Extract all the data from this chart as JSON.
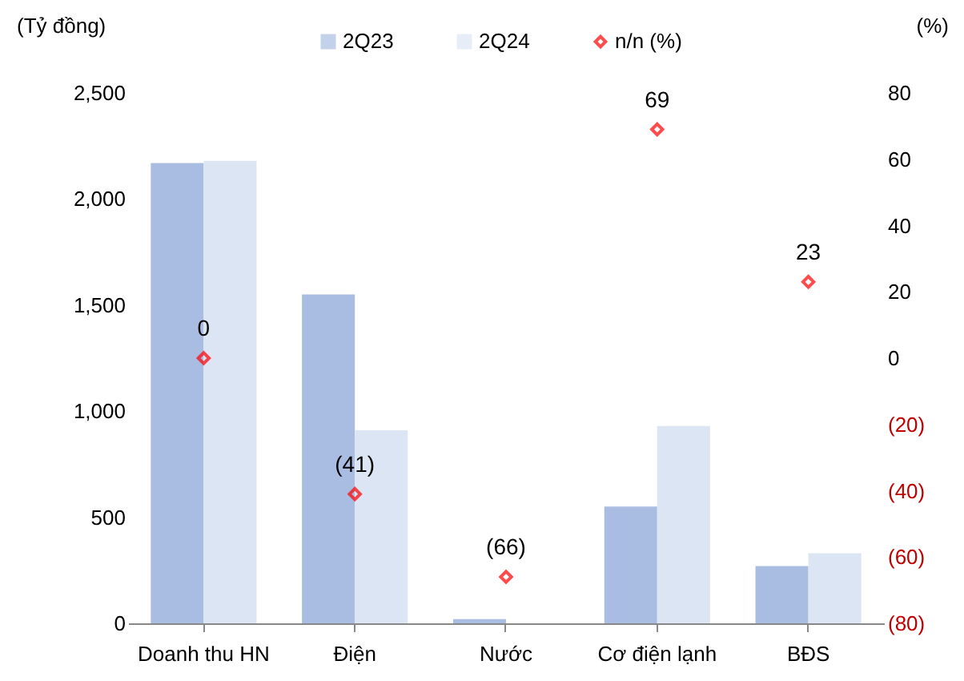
{
  "chart_data": {
    "type": "bar",
    "ylabel": "(Tỷ đồng)",
    "y2label": "(%)",
    "categories": [
      "Doanh thu HN",
      "Điện",
      "Nước",
      "Cơ điện lạnh",
      "BĐS"
    ],
    "series": [
      {
        "name": "2Q23",
        "color": "#a9bde3",
        "values": [
          2170,
          1550,
          20,
          550,
          270
        ]
      },
      {
        "name": "2Q24",
        "color": "#dce5f3",
        "values": [
          2180,
          910,
          null,
          930,
          330
        ]
      },
      {
        "name": "n/n (%)",
        "type": "scatter",
        "axis": "y2",
        "marker": "diamond",
        "color": "#ff0000",
        "values": [
          0,
          -41,
          -66,
          69,
          23
        ],
        "value_labels": [
          "0",
          "(41)",
          "(66)",
          "69",
          "23"
        ]
      }
    ],
    "ylim": [
      0,
      2500
    ],
    "yticks": [
      0,
      500,
      {
        "value": 1000,
        "label": "1,000"
      },
      {
        "value": 1500,
        "label": "1,500"
      },
      {
        "value": 2000,
        "label": "2,000"
      },
      {
        "value": 2500,
        "label": "2,500"
      }
    ],
    "y2lim": [
      -80,
      80
    ],
    "y2ticks": [
      {
        "value": -80,
        "label": "(80)"
      },
      {
        "value": -60,
        "label": "(60)"
      },
      {
        "value": -40,
        "label": "(40)"
      },
      {
        "value": -20,
        "label": "(20)"
      },
      0,
      20,
      40,
      60,
      80
    ],
    "grid": false,
    "legend": "top"
  }
}
